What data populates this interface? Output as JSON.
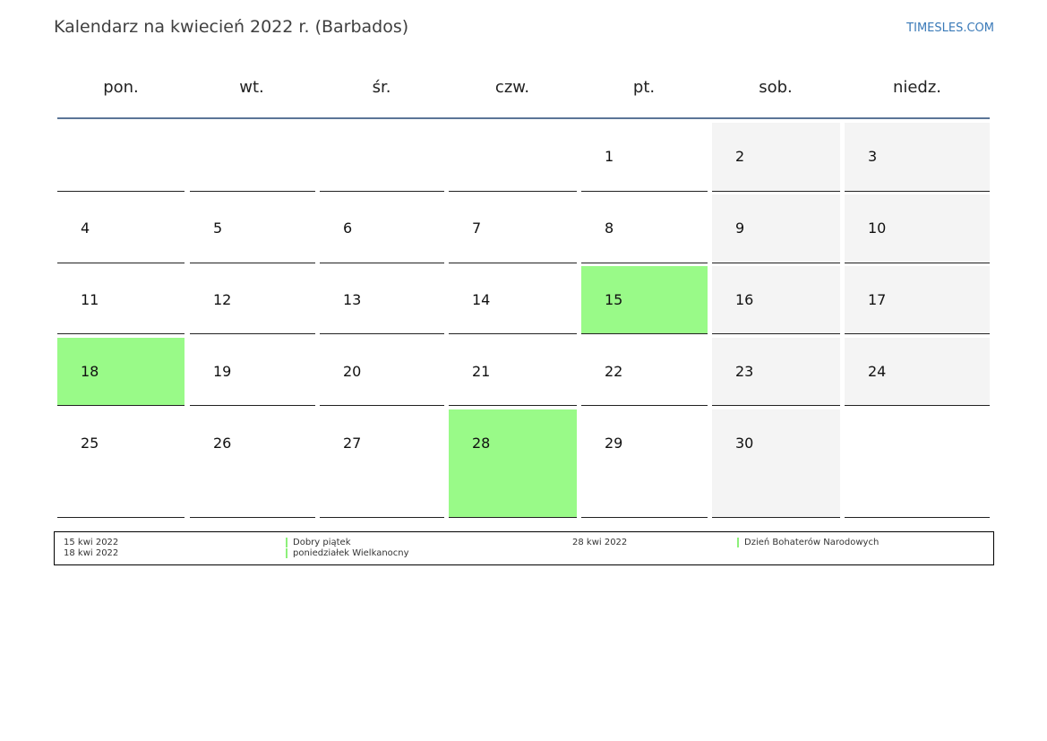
{
  "header": {
    "title": "Kalendarz na kwiecień 2022 r. (Barbados)",
    "brand": "TIMESLES.COM"
  },
  "weekdays": [
    "pon.",
    "wt.",
    "śr.",
    "czw.",
    "pt.",
    "sob.",
    "niedz."
  ],
  "colors": {
    "holiday": "#99fa88",
    "weekend": "#f4f4f4",
    "header_rule": "#5b7597",
    "brand": "#3a7ab8"
  },
  "weeks": [
    [
      null,
      null,
      null,
      null,
      {
        "day": "1"
      },
      {
        "day": "2"
      },
      {
        "day": "3"
      }
    ],
    [
      {
        "day": "4"
      },
      {
        "day": "5"
      },
      {
        "day": "6"
      },
      {
        "day": "7"
      },
      {
        "day": "8"
      },
      {
        "day": "9"
      },
      {
        "day": "10"
      }
    ],
    [
      {
        "day": "11"
      },
      {
        "day": "12"
      },
      {
        "day": "13"
      },
      {
        "day": "14"
      },
      {
        "day": "15",
        "holiday": true
      },
      {
        "day": "16"
      },
      {
        "day": "17"
      }
    ],
    [
      {
        "day": "18",
        "holiday": true
      },
      {
        "day": "19"
      },
      {
        "day": "20"
      },
      {
        "day": "21"
      },
      {
        "day": "22"
      },
      {
        "day": "23"
      },
      {
        "day": "24"
      }
    ],
    [
      {
        "day": "25"
      },
      {
        "day": "26"
      },
      {
        "day": "27"
      },
      {
        "day": "28",
        "holiday": true
      },
      {
        "day": "29"
      },
      {
        "day": "30"
      },
      null
    ]
  ],
  "legend": [
    {
      "date": "15 kwi 2022",
      "name": "Dobry piątek"
    },
    {
      "date": "18 kwi 2022",
      "name": "poniedziałek Wielkanocny"
    },
    {
      "date": "28 kwi 2022",
      "name": "Dzień Bohaterów Narodowych"
    }
  ]
}
